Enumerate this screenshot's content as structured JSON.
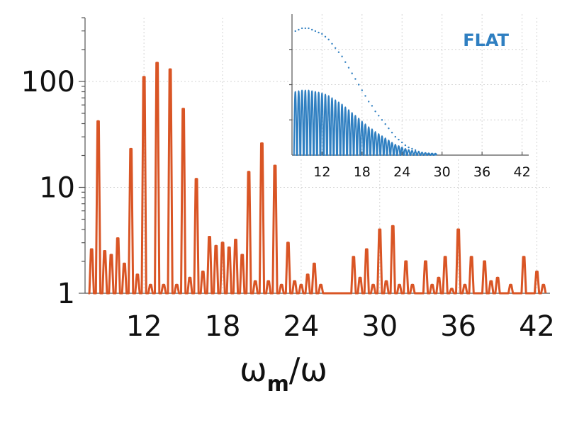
{
  "chart_data": [
    {
      "type": "line",
      "title": "",
      "xlabel": "ωm/ω",
      "xlabel_parts": {
        "omega": "ω",
        "sub": "m",
        "tail": "/ω"
      },
      "ylabel": "",
      "xlim": [
        7.5,
        43
      ],
      "ylim": [
        1,
        400
      ],
      "y_scale": "log",
      "grid": true,
      "x_tick_labels": [
        "12",
        "18",
        "24",
        "30",
        "36",
        "42"
      ],
      "x_tick_values": [
        12,
        18,
        24,
        30,
        36,
        42
      ],
      "y_tick_labels": [
        "1",
        "10",
        "100"
      ],
      "y_tick_values": [
        1,
        10,
        100
      ],
      "colors": {
        "series": "#d95525"
      },
      "series": [
        {
          "name": "",
          "x": [
            8,
            8.5,
            9,
            9.5,
            10,
            10.5,
            11,
            11.5,
            12,
            12.5,
            13,
            13.5,
            14,
            14.5,
            15,
            15.5,
            16,
            16.5,
            17,
            17.5,
            18,
            18.5,
            19,
            19.5,
            20,
            20.5,
            21,
            21.5,
            22,
            22.5,
            23,
            23.5,
            24,
            24.5,
            25,
            25.5,
            26,
            26.5,
            27,
            27.5,
            28,
            28.5,
            29,
            29.5,
            30,
            30.5,
            31,
            31.5,
            32,
            32.5,
            33,
            33.5,
            34,
            34.5,
            35,
            35.5,
            36,
            36.5,
            37,
            37.5,
            38,
            38.5,
            39,
            39.5,
            40,
            40.5,
            41,
            41.5,
            42,
            42.5
          ],
          "y": [
            2.6,
            42,
            2.5,
            2.3,
            3.3,
            1.9,
            23,
            1.5,
            110,
            1.2,
            150,
            1.2,
            130,
            1.2,
            55,
            1.4,
            12,
            1.6,
            3.4,
            2.8,
            3,
            2.7,
            3.2,
            2.3,
            14,
            1.3,
            26,
            1.3,
            16,
            1.2,
            3,
            1.3,
            1.2,
            1.5,
            1.9,
            1.2,
            1,
            1,
            1,
            1,
            2.2,
            1.4,
            2.6,
            1.2,
            4,
            1.3,
            4.3,
            1.2,
            2,
            1.2,
            1,
            2,
            1.2,
            1.4,
            2.2,
            1.1,
            4,
            1.2,
            2.2,
            1,
            2,
            1.3,
            1.4,
            1,
            1.2,
            1,
            2.2,
            1,
            1.6,
            1.2
          ]
        }
      ]
    },
    {
      "type": "line",
      "title": "",
      "annotation": "FLAT",
      "xlabel": "",
      "ylabel": "",
      "xlim": [
        7.5,
        43
      ],
      "ylim": [
        0,
        1
      ],
      "grid": true,
      "x_tick_labels": [
        "12",
        "18",
        "24",
        "30",
        "36",
        "42"
      ],
      "x_tick_values": [
        12,
        18,
        24,
        30,
        36,
        42
      ],
      "colors": {
        "series": "#2f7fc1",
        "annotation": "#2f7fc1"
      },
      "series": [
        {
          "name": "",
          "x": [
            8,
            8.5,
            9,
            9.5,
            10,
            10.5,
            11,
            11.5,
            12,
            12.5,
            13,
            13.5,
            14,
            14.5,
            15,
            15.5,
            16,
            16.5,
            17,
            17.5,
            18,
            18.5,
            19,
            19.5,
            20,
            20.5,
            21,
            21.5,
            22,
            22.5,
            23,
            23.5,
            24,
            24.5,
            25,
            25.5,
            26,
            26.5,
            27,
            27.5,
            28,
            28.5,
            29
          ],
          "y": [
            0.88,
            0.89,
            0.9,
            0.9,
            0.9,
            0.89,
            0.88,
            0.87,
            0.86,
            0.84,
            0.82,
            0.79,
            0.76,
            0.73,
            0.7,
            0.66,
            0.62,
            0.58,
            0.54,
            0.5,
            0.46,
            0.42,
            0.38,
            0.35,
            0.31,
            0.28,
            0.25,
            0.22,
            0.19,
            0.16,
            0.13,
            0.11,
            0.09,
            0.07,
            0.055,
            0.045,
            0.035,
            0.025,
            0.018,
            0.012,
            0.008,
            0.005,
            0.003
          ]
        }
      ]
    }
  ]
}
